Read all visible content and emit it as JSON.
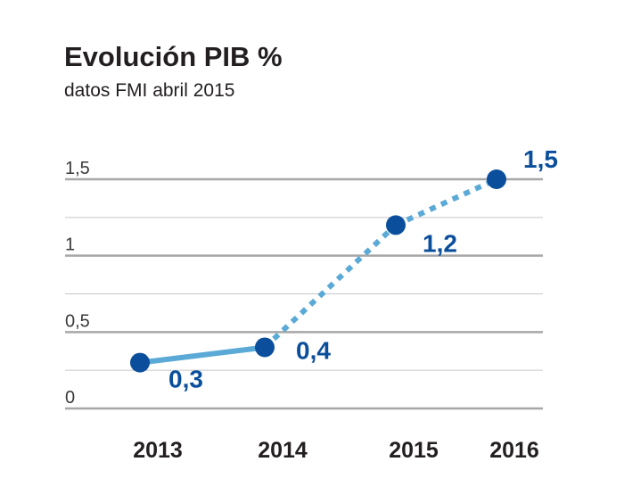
{
  "colors": {
    "grid_major": "#a7a7a7",
    "grid_minor": "#c6c6c6",
    "line": "#5aa9d6",
    "marker": "#0b4f9c",
    "data_label": "#0b4f9c",
    "text": "#231f20"
  },
  "chart_data": {
    "type": "line",
    "title": "Evolución PIB %",
    "subtitle": "datos FMI abril 2015",
    "xlabel": "",
    "ylabel": "",
    "categories": [
      "2013",
      "2014",
      "2015",
      "2016"
    ],
    "series": [
      {
        "values": [
          0.3,
          0.4,
          1.2,
          1.5
        ],
        "labels": [
          "0,3",
          "0,4",
          "1,2",
          "1,5"
        ],
        "line_style": [
          "solid",
          "dotted",
          "dotted"
        ]
      }
    ],
    "yticks": [
      {
        "value": 0,
        "label": "0"
      },
      {
        "value": 0.5,
        "label": "0,5"
      },
      {
        "value": 1,
        "label": "1"
      },
      {
        "value": 1.5,
        "label": "1,5"
      }
    ],
    "ylim": [
      0,
      1.5
    ],
    "grid": true,
    "legend": "none"
  }
}
